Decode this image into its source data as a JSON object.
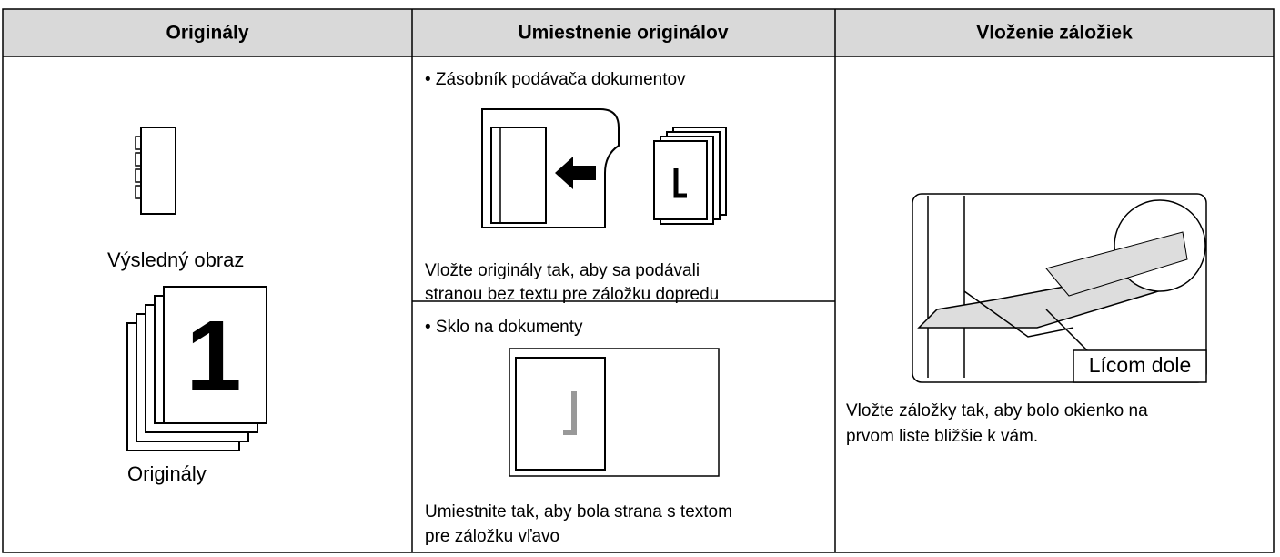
{
  "header": {
    "columns": [
      "Originály",
      "Umiestnenie originálov",
      "Vloženie záložiek"
    ]
  },
  "originals": {
    "result_label": "Výsledný obraz",
    "page_number": "1",
    "originals_label": "Originály"
  },
  "placement": {
    "feeder": {
      "title": "• Zásobník podávača dokumentov",
      "caption": [
        "Vložte originály tak, aby sa podávali",
        "stranou bez textu pre záložku dopredu"
      ]
    },
    "glass": {
      "title": "• Sklo na dokumenty",
      "caption": [
        "Umiestnite tak, aby bola strana s textom",
        "pre záložku vľavo"
      ]
    }
  },
  "tab_insertion": {
    "callout": "Lícom dole",
    "caption": [
      "Vložte záložky tak, aby bolo okienko na",
      "prvom liste bližšie k vám."
    ]
  }
}
